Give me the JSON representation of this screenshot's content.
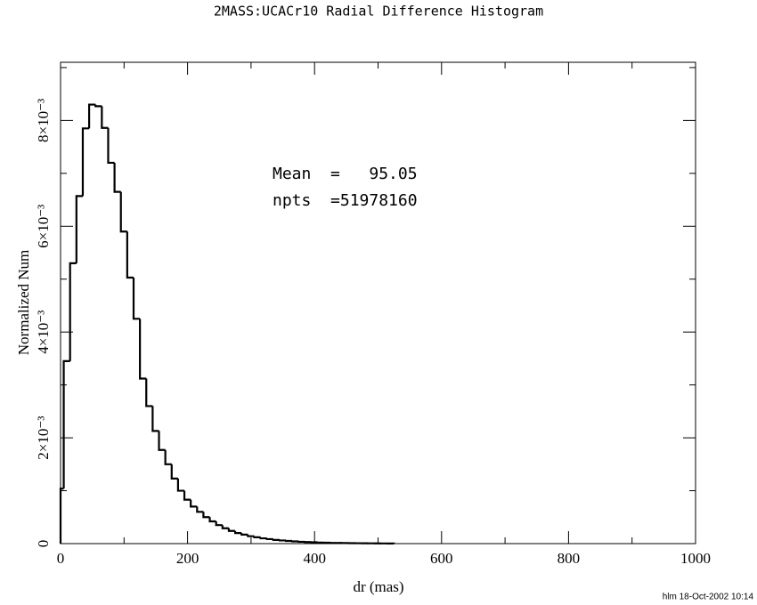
{
  "chart_data": {
    "type": "histogram",
    "title": "2MASS:UCACr10 Radial Difference Histogram",
    "xlabel": "dr (mas)",
    "ylabel": "Normalized Num",
    "annotations": [
      "Mean  =   95.05",
      "npts  =51978160"
    ],
    "footer": "hlm 18-Oct-2002 10:14",
    "color": "#000000",
    "bins": [
      0,
      5,
      15,
      25,
      35,
      45,
      55,
      65,
      75,
      85,
      95,
      105,
      115,
      125,
      135,
      145,
      155,
      165,
      175,
      185,
      195,
      205,
      215,
      225,
      235,
      245,
      255,
      265,
      275,
      285,
      295,
      305,
      315,
      325,
      335,
      345,
      355,
      365,
      375,
      385,
      395,
      405,
      415,
      425,
      435,
      445,
      455,
      465,
      475,
      485,
      495,
      505,
      515,
      525
    ],
    "values": [
      0.00104,
      0.00345,
      0.0053,
      0.00657,
      0.00785,
      0.0083,
      0.00827,
      0.00786,
      0.0072,
      0.00665,
      0.0059,
      0.00503,
      0.00425,
      0.00312,
      0.0026,
      0.00213,
      0.00177,
      0.0015,
      0.00123,
      0.001,
      0.00083,
      0.0007,
      0.0006,
      0.0005,
      0.00042,
      0.00035,
      0.00029,
      0.00024,
      0.0002,
      0.00017,
      0.00014,
      0.00012,
      0.0001,
      8.5e-05,
      7e-05,
      6e-05,
      5e-05,
      4.2e-05,
      3.5e-05,
      3e-05,
      2.5e-05,
      2e-05,
      1.7e-05,
      1.4e-05,
      1.2e-05,
      1e-05,
      8e-06,
      7e-06,
      6e-06,
      5e-06,
      4e-06,
      3e-06,
      2e-06
    ],
    "xlim": [
      0,
      1000
    ],
    "xticks": [
      0,
      200,
      400,
      600,
      800,
      1000
    ],
    "xminor_ticks": [
      100,
      300,
      500,
      700,
      900
    ],
    "ylim": [
      0,
      0.0091
    ],
    "yticks": [
      0,
      {
        "value": 0.002,
        "label": "2×10⁻³"
      },
      {
        "value": 0.004,
        "label": "4×10⁻³"
      },
      {
        "value": 0.006,
        "label": "6×10⁻³"
      },
      {
        "value": 0.008,
        "label": "8×10⁻³"
      }
    ],
    "yminor_ticks": [
      0.001,
      0.003,
      0.005,
      0.007,
      0.009
    ]
  }
}
